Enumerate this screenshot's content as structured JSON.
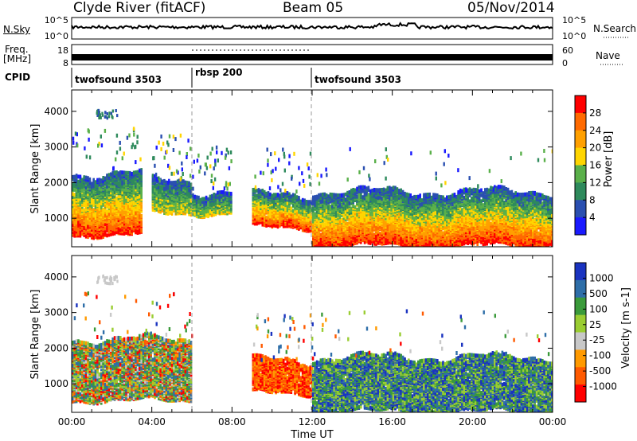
{
  "header": {
    "station": "Clyde River (fitACF)",
    "beam": "Beam 05",
    "date": "05/Nov/2014"
  },
  "side_labels": {
    "nsky": "N.Sky",
    "nsearch": "N.Search",
    "freq": "Freq.",
    "freq_unit": "[MHz]",
    "nave": "Nave",
    "cpid": "CPID"
  },
  "noise_panel": {
    "ticks_left": [
      "10^5",
      "10^0"
    ],
    "ticks_right": [
      "10^5",
      "10^0"
    ]
  },
  "freq_panel": {
    "ticks_left": [
      "18",
      "8"
    ],
    "ticks_right": [
      "60",
      "0"
    ]
  },
  "cpid_segments": [
    {
      "label": "twofsound 3503",
      "start_h": 0,
      "end_h": 6
    },
    {
      "label": "rbsp 200",
      "start_h": 6,
      "end_h": 12
    },
    {
      "label": "twofsound 3503",
      "start_h": 12,
      "end_h": 24
    }
  ],
  "colors": {
    "power_scale": [
      "#1a1aff",
      "#2a4fb0",
      "#2e8a5c",
      "#5ab04a",
      "#ffd500",
      "#ffa000",
      "#ff6a00",
      "#ff0000"
    ],
    "velocity_scale": [
      "#ff0000",
      "#ff5a00",
      "#ff9a00",
      "#c8c8c8",
      "#9acd32",
      "#3a9a3a",
      "#2e6ea8",
      "#1a33c0"
    ]
  },
  "chart_data": [
    {
      "type": "heatmap",
      "panel": "power",
      "ylabel": "Slant Range [km]",
      "yticks": [
        "1000",
        "2000",
        "3000",
        "4000"
      ],
      "ylim": [
        200,
        4600
      ],
      "xlim": [
        0,
        24
      ],
      "colorbar_label": "Power [dB]",
      "colorbar_ticks": [
        "4",
        "8",
        "12",
        "16",
        "20",
        "24",
        "28"
      ],
      "colorbar_range": [
        0,
        30
      ],
      "scatter_regions_km": [
        {
          "t_start": 0.0,
          "t_end": 3.5,
          "r_min": 600,
          "r_max": 2300,
          "level": "high"
        },
        {
          "t_start": 4.0,
          "t_end": 6.0,
          "r_min": 1200,
          "r_max": 2100,
          "level": "mid"
        },
        {
          "t_start": 6.0,
          "t_end": 8.0,
          "r_min": 1200,
          "r_max": 1800,
          "level": "mid"
        },
        {
          "t_start": 9.0,
          "t_end": 12.0,
          "r_min": 800,
          "r_max": 1700,
          "level": "high"
        },
        {
          "t_start": 12.0,
          "t_end": 24.0,
          "r_min": 300,
          "r_max": 1800,
          "level": "high"
        }
      ]
    },
    {
      "type": "heatmap",
      "panel": "velocity",
      "ylabel": "Slant Range [km]",
      "yticks": [
        "1000",
        "2000",
        "3000",
        "4000"
      ],
      "ylim": [
        200,
        4600
      ],
      "xlim": [
        0,
        24
      ],
      "xlabel": "Time UT",
      "xticks": [
        "00:00",
        "04:00",
        "08:00",
        "12:00",
        "16:00",
        "20:00",
        "00:00"
      ],
      "colorbar_label": "Velocity [m s-1]",
      "colorbar_ticks": [
        "1000",
        "500",
        "100",
        "25",
        "-25",
        "-100",
        "-500",
        "-1000"
      ],
      "scatter_regions_km": [
        {
          "t_start": 0.0,
          "t_end": 6.0,
          "r_min": 600,
          "r_max": 2300,
          "sign": "mixed"
        },
        {
          "t_start": 9.0,
          "t_end": 12.0,
          "r_min": 800,
          "r_max": 1700,
          "sign": "negative"
        },
        {
          "t_start": 12.0,
          "t_end": 24.0,
          "r_min": 300,
          "r_max": 1800,
          "sign": "positive"
        }
      ]
    }
  ]
}
